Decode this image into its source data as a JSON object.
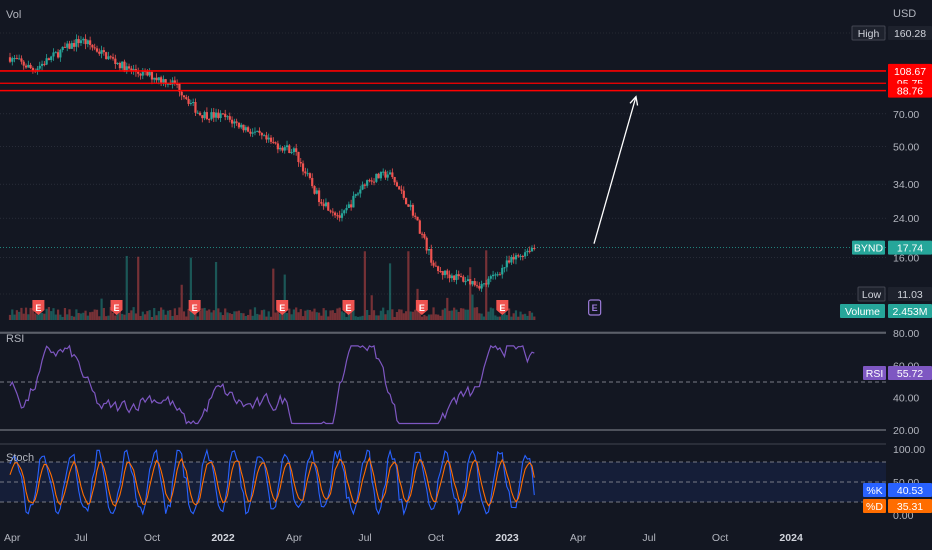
{
  "header": {
    "vol_label": "Vol",
    "currency": "USD"
  },
  "price_axis_ticks": [
    "70.00",
    "50.00",
    "34.00",
    "24.00",
    "16.00"
  ],
  "price_labels": [
    {
      "text": "High",
      "value": "160.28",
      "kind": "high"
    },
    {
      "text": "",
      "value": "108.67",
      "kind": "red"
    },
    {
      "text": "",
      "value": "95.75",
      "kind": "red"
    },
    {
      "text": "",
      "value": "88.76",
      "kind": "red"
    },
    {
      "text": "BYND",
      "value": "17.74",
      "kind": "last"
    },
    {
      "text": "Low",
      "value": "11.03",
      "kind": "low"
    },
    {
      "text": "Volume",
      "value": "2.453M",
      "kind": "volume"
    }
  ],
  "rsi": {
    "label": "RSI",
    "value": "55.72",
    "ticks": [
      "80.00",
      "60.00",
      "40.00",
      "20.00"
    ]
  },
  "stoch": {
    "label": "Stoch",
    "k_label": "%K",
    "k_value": "40.53",
    "d_label": "%D",
    "d_value": "35.31",
    "ticks": [
      "100.00",
      "50.00",
      "0.00"
    ]
  },
  "time_axis": [
    "Apr",
    "Jul",
    "Oct",
    "2022",
    "Apr",
    "Jul",
    "Oct",
    "2023",
    "Apr",
    "Jul",
    "Oct",
    "2024"
  ],
  "earnings_marker": "E",
  "colors": {
    "bg": "#131722",
    "up": "#26a69a",
    "down": "#ef5350",
    "red_line": "#ff0000",
    "rsi": "#7e57c2",
    "stoch_k": "#2962ff",
    "stoch_d": "#ff6d00",
    "last_price": "#26a69a"
  },
  "chart_data": {
    "type": "line",
    "title": "",
    "ylabel": "USD",
    "series": [
      {
        "name": "BYND",
        "x": [
          "2021-04",
          "2021-05",
          "2021-06",
          "2021-07",
          "2021-08",
          "2021-09",
          "2021-10",
          "2021-11",
          "2021-12",
          "2022-01",
          "2022-02",
          "2022-03",
          "2022-04",
          "2022-05",
          "2022-06",
          "2022-07",
          "2022-08",
          "2022-09",
          "2022-10",
          "2022-11",
          "2022-12",
          "2023-01",
          "2023-02"
        ],
        "values": [
          125,
          110,
          130,
          150,
          128,
          110,
          103,
          95,
          70,
          68,
          60,
          52,
          48,
          30,
          24,
          35,
          38,
          26,
          14,
          13,
          12,
          15,
          17.74
        ]
      }
    ],
    "horizontal_levels": [
      108.67,
      95.75,
      88.76
    ],
    "projection_arrow": {
      "from": 17.74,
      "to": 88.76
    },
    "ylim": [
      11.03,
      160.28
    ]
  }
}
